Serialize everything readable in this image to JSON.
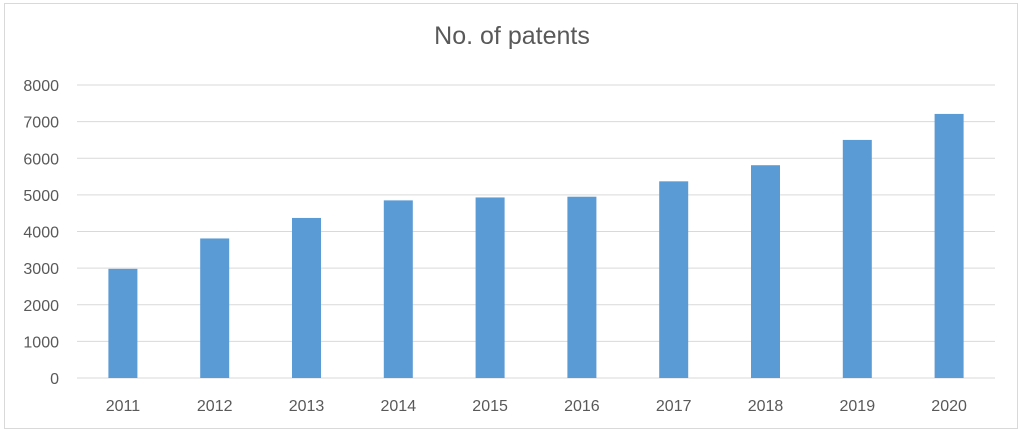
{
  "chart_data": {
    "type": "bar",
    "title": "No. of patents",
    "xlabel": "",
    "ylabel": "",
    "categories": [
      "2011",
      "2012",
      "2013",
      "2014",
      "2015",
      "2016",
      "2017",
      "2018",
      "2019",
      "2020"
    ],
    "values": [
      2980,
      3810,
      4370,
      4850,
      4930,
      4950,
      5370,
      5810,
      6500,
      7210
    ],
    "ylim": [
      0,
      8000
    ],
    "yticks": [
      "0",
      "1000",
      "2000",
      "3000",
      "4000",
      "5000",
      "6000",
      "7000",
      "8000"
    ],
    "grid": true,
    "legend": "none",
    "colors": {
      "bar": "#5b9bd5",
      "grid": "#d9d9d9",
      "axis": "#d9d9d9",
      "text": "#595959"
    }
  }
}
